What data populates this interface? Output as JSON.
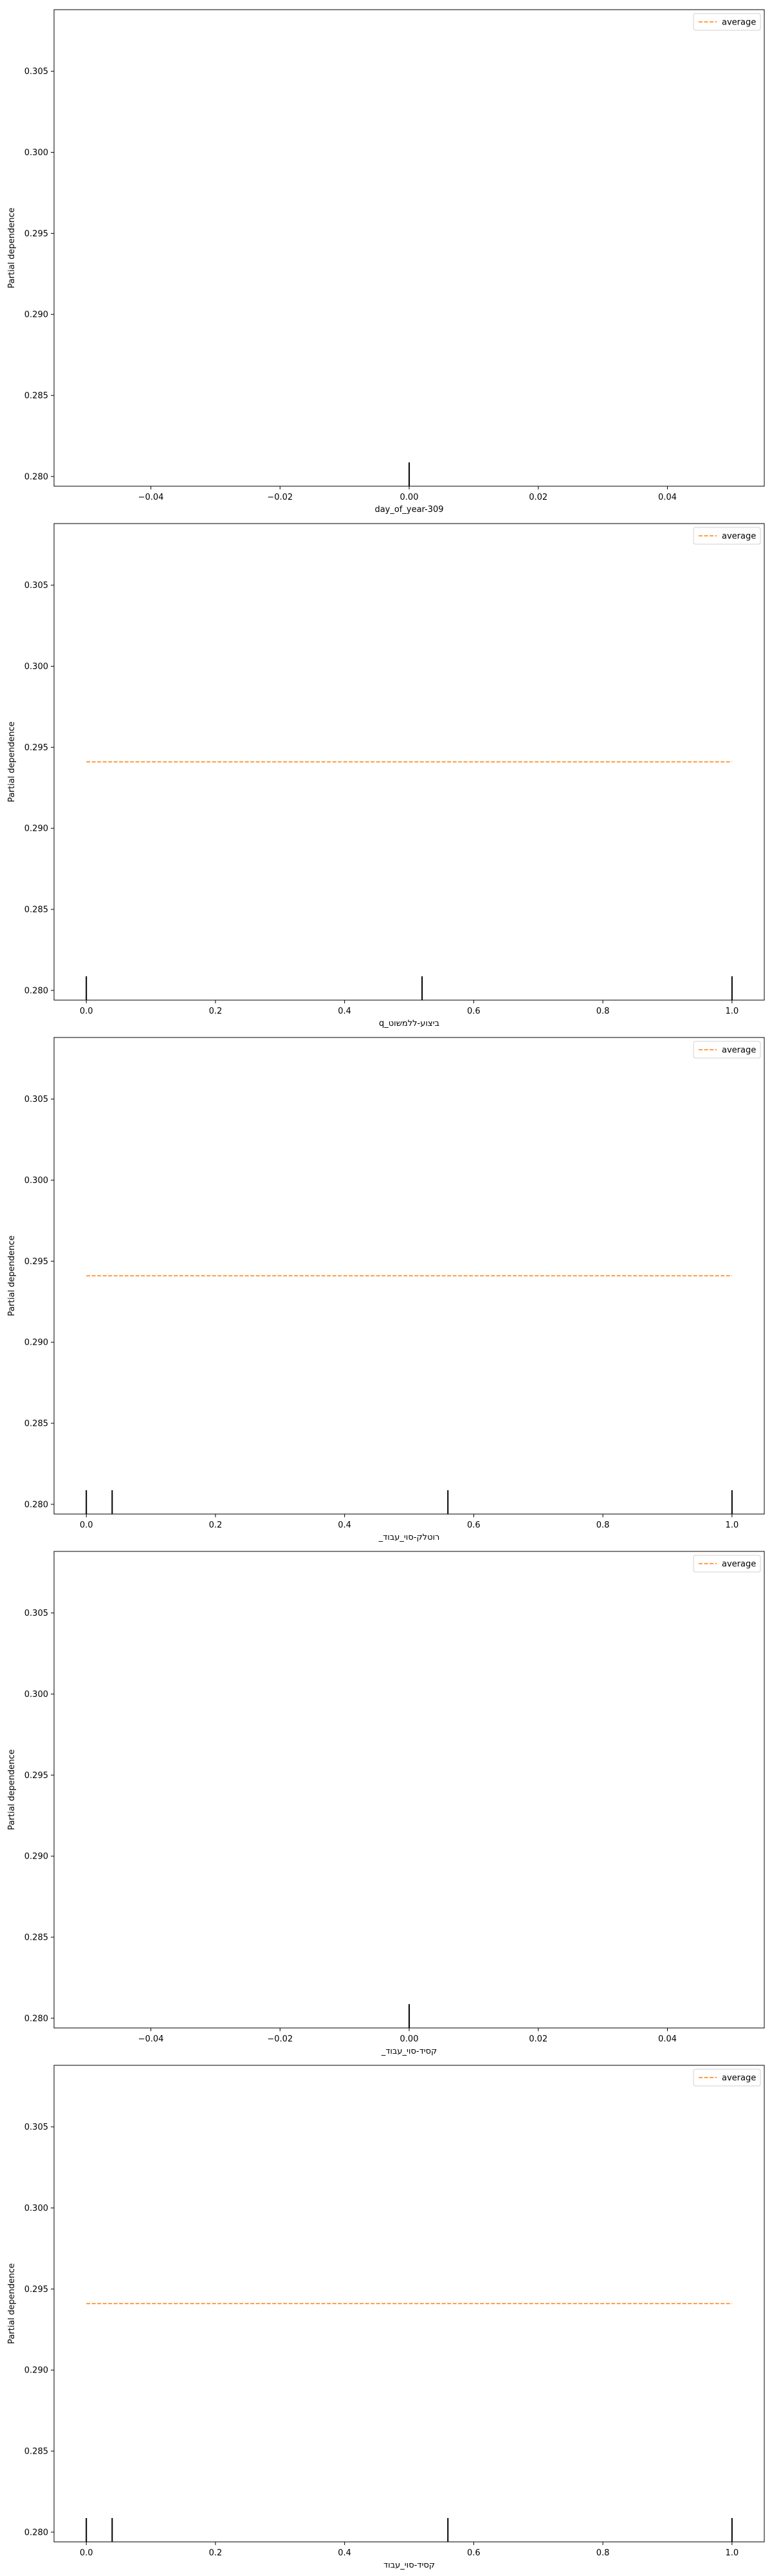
{
  "chart_data": [
    {
      "type": "line",
      "xlabel": "day_of_year-309",
      "ylabel": "Partial dependence",
      "xlim": [
        -0.055,
        0.055
      ],
      "ylim": [
        0.2794,
        0.3088
      ],
      "xticks": [
        -0.04,
        -0.02,
        0.0,
        0.02,
        0.04
      ],
      "xtick_labels": [
        "−0.04",
        "−0.02",
        "0.00",
        "0.02",
        "0.04"
      ],
      "yticks": [
        0.28,
        0.285,
        0.29,
        0.295,
        0.3,
        0.305
      ],
      "ytick_labels": [
        "0.280",
        "0.285",
        "0.290",
        "0.295",
        "0.300",
        "0.305"
      ],
      "series": [
        {
          "name": "average",
          "x": [],
          "y": [],
          "color": "#ff7f0e",
          "linestyle": "dashed"
        }
      ],
      "rug": [
        0.0
      ],
      "legend_position": "top-right",
      "grid": false
    },
    {
      "type": "line",
      "xlabel": "q_ביצוע-ללמשוט",
      "ylabel": "Partial dependence",
      "xlim": [
        -0.05,
        1.05
      ],
      "ylim": [
        0.2794,
        0.3088
      ],
      "xticks": [
        0.0,
        0.2,
        0.4,
        0.6,
        0.8,
        1.0
      ],
      "xtick_labels": [
        "0.0",
        "0.2",
        "0.4",
        "0.6",
        "0.8",
        "1.0"
      ],
      "yticks": [
        0.28,
        0.285,
        0.29,
        0.295,
        0.3,
        0.305
      ],
      "ytick_labels": [
        "0.280",
        "0.285",
        "0.290",
        "0.295",
        "0.300",
        "0.305"
      ],
      "series": [
        {
          "name": "average",
          "x": [
            0.0,
            1.0
          ],
          "y": [
            0.2941,
            0.2941
          ],
          "color": "#ff7f0e",
          "linestyle": "dashed"
        }
      ],
      "rug": [
        0.0,
        0.52,
        1.0
      ],
      "legend_position": "top-right",
      "grid": false
    },
    {
      "type": "line",
      "xlabel": "_רוטלק-סוי_עבוד",
      "ylabel": "Partial dependence",
      "xlim": [
        -0.05,
        1.05
      ],
      "ylim": [
        0.2794,
        0.3088
      ],
      "xticks": [
        0.0,
        0.2,
        0.4,
        0.6,
        0.8,
        1.0
      ],
      "xtick_labels": [
        "0.0",
        "0.2",
        "0.4",
        "0.6",
        "0.8",
        "1.0"
      ],
      "yticks": [
        0.28,
        0.285,
        0.29,
        0.295,
        0.3,
        0.305
      ],
      "ytick_labels": [
        "0.280",
        "0.285",
        "0.290",
        "0.295",
        "0.300",
        "0.305"
      ],
      "series": [
        {
          "name": "average",
          "x": [
            0.0,
            1.0
          ],
          "y": [
            0.2941,
            0.2941
          ],
          "color": "#ff7f0e",
          "linestyle": "dashed"
        }
      ],
      "rug": [
        0.0,
        0.04,
        0.56,
        1.0
      ],
      "legend_position": "top-right",
      "grid": false
    },
    {
      "type": "line",
      "xlabel": "_קסיד-סוי_עבוד",
      "ylabel": "Partial dependence",
      "xlim": [
        -0.055,
        0.055
      ],
      "ylim": [
        0.2794,
        0.3088
      ],
      "xticks": [
        -0.04,
        -0.02,
        0.0,
        0.02,
        0.04
      ],
      "xtick_labels": [
        "−0.04",
        "−0.02",
        "0.00",
        "0.02",
        "0.04"
      ],
      "yticks": [
        0.28,
        0.285,
        0.29,
        0.295,
        0.3,
        0.305
      ],
      "ytick_labels": [
        "0.280",
        "0.285",
        "0.290",
        "0.295",
        "0.300",
        "0.305"
      ],
      "series": [
        {
          "name": "average",
          "x": [],
          "y": [],
          "color": "#ff7f0e",
          "linestyle": "dashed"
        }
      ],
      "rug": [
        0.0
      ],
      "legend_position": "top-right",
      "grid": false
    },
    {
      "type": "line",
      "xlabel": "קסיד-סוי_עבוד",
      "ylabel": "Partial dependence",
      "xlim": [
        -0.05,
        1.05
      ],
      "ylim": [
        0.2794,
        0.3088
      ],
      "xticks": [
        0.0,
        0.2,
        0.4,
        0.6,
        0.8,
        1.0
      ],
      "xtick_labels": [
        "0.0",
        "0.2",
        "0.4",
        "0.6",
        "0.8",
        "1.0"
      ],
      "yticks": [
        0.28,
        0.285,
        0.29,
        0.295,
        0.3,
        0.305
      ],
      "ytick_labels": [
        "0.280",
        "0.285",
        "0.290",
        "0.295",
        "0.300",
        "0.305"
      ],
      "series": [
        {
          "name": "average",
          "x": [
            0.0,
            1.0
          ],
          "y": [
            0.2941,
            0.2941
          ],
          "color": "#ff7f0e",
          "linestyle": "dashed"
        }
      ],
      "rug": [
        0.0,
        0.04,
        0.56,
        1.0
      ],
      "legend_position": "top-right",
      "grid": false
    }
  ]
}
